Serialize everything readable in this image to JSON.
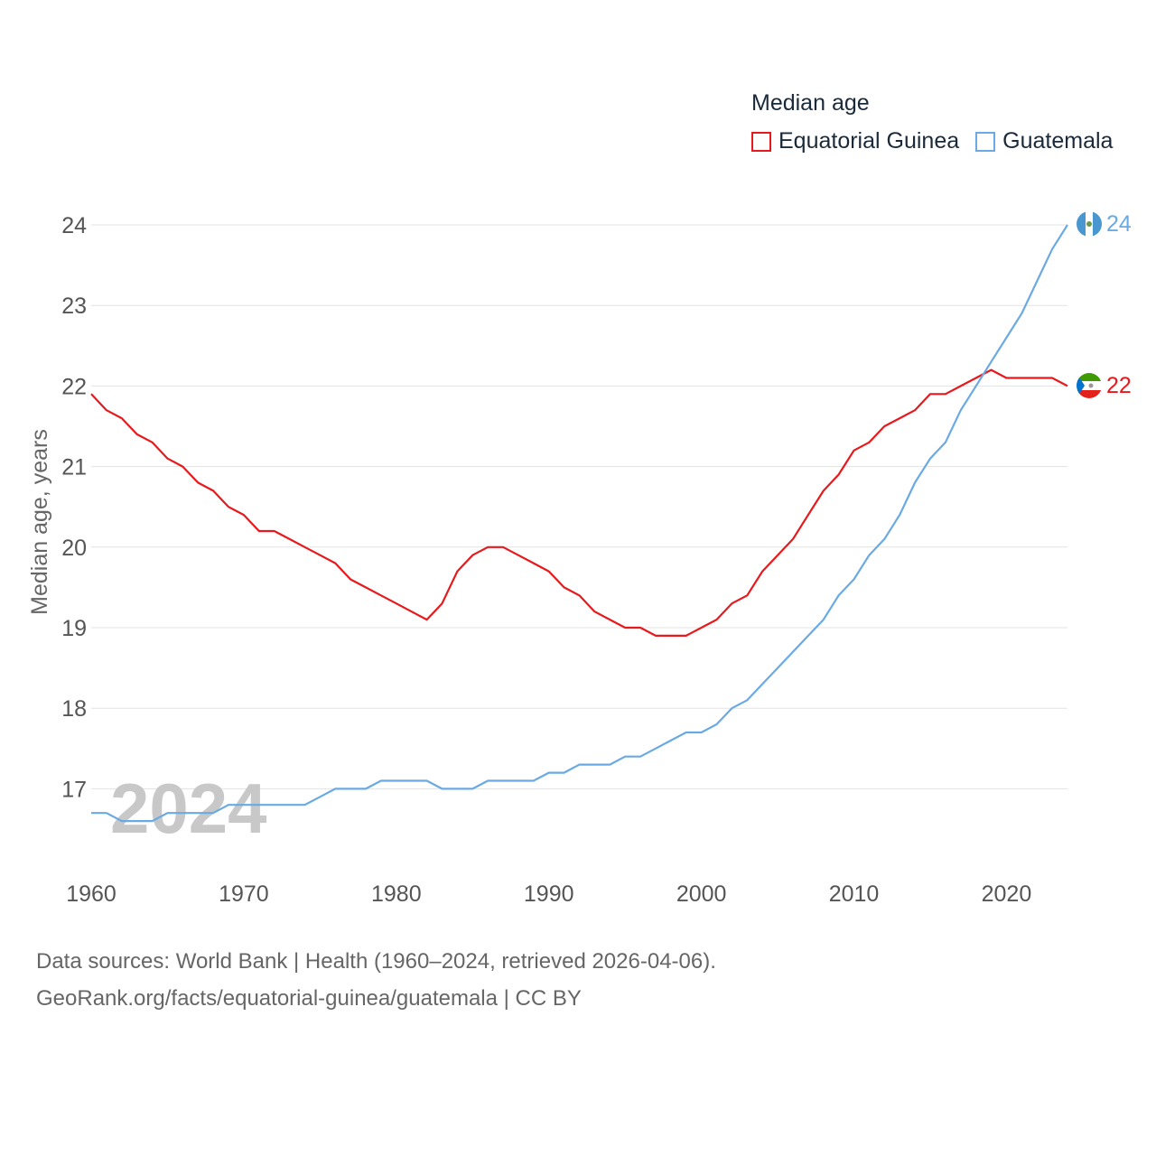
{
  "legend": {
    "title": "Median age",
    "items": [
      "Equatorial Guinea",
      "Guatemala"
    ]
  },
  "colors": {
    "equatorial_guinea": "#e8191c",
    "guatemala": "#6aaae4"
  },
  "watermark_year": "2024",
  "end_labels": {
    "equatorial_guinea": "22",
    "guatemala": "24"
  },
  "source": {
    "line1": "Data sources: World Bank | Health (1960–2024, retrieved 2026-04-06).",
    "line2": "GeoRank.org/facts/equatorial-guinea/guatemala | CC BY"
  },
  "chart_data": {
    "type": "line",
    "title": "Median age",
    "xlabel": "",
    "ylabel": "Median age, years",
    "xlim": [
      1960,
      2024
    ],
    "ylim": [
      16,
      24
    ],
    "x_ticks": [
      1960,
      1970,
      1980,
      1990,
      2000,
      2010,
      2020
    ],
    "y_ticks": [
      17,
      18,
      19,
      20,
      21,
      22,
      23,
      24
    ],
    "grid": true,
    "x": [
      1960,
      1961,
      1962,
      1963,
      1964,
      1965,
      1966,
      1967,
      1968,
      1969,
      1970,
      1971,
      1972,
      1973,
      1974,
      1975,
      1976,
      1977,
      1978,
      1979,
      1980,
      1981,
      1982,
      1983,
      1984,
      1985,
      1986,
      1987,
      1988,
      1989,
      1990,
      1991,
      1992,
      1993,
      1994,
      1995,
      1996,
      1997,
      1998,
      1999,
      2000,
      2001,
      2002,
      2003,
      2004,
      2005,
      2006,
      2007,
      2008,
      2009,
      2010,
      2011,
      2012,
      2013,
      2014,
      2015,
      2016,
      2017,
      2018,
      2019,
      2020,
      2021,
      2022,
      2023,
      2024
    ],
    "series": [
      {
        "name": "Equatorial Guinea",
        "values": [
          21.9,
          21.7,
          21.6,
          21.4,
          21.3,
          21.1,
          21.0,
          20.8,
          20.7,
          20.5,
          20.4,
          20.2,
          20.2,
          20.1,
          20.0,
          19.9,
          19.8,
          19.6,
          19.5,
          19.4,
          19.3,
          19.2,
          19.1,
          19.3,
          19.7,
          19.9,
          20.0,
          20.0,
          19.9,
          19.8,
          19.7,
          19.5,
          19.4,
          19.2,
          19.1,
          19.0,
          19.0,
          18.9,
          18.9,
          18.9,
          19.0,
          19.1,
          19.3,
          19.4,
          19.7,
          19.9,
          20.1,
          20.4,
          20.7,
          20.9,
          21.2,
          21.3,
          21.5,
          21.6,
          21.7,
          21.9,
          21.9,
          22.0,
          22.1,
          22.2,
          22.1,
          22.1,
          22.1,
          22.1,
          22.0
        ]
      },
      {
        "name": "Guatemala",
        "values": [
          16.7,
          16.7,
          16.6,
          16.6,
          16.6,
          16.7,
          16.7,
          16.7,
          16.7,
          16.8,
          16.8,
          16.8,
          16.8,
          16.8,
          16.8,
          16.9,
          17.0,
          17.0,
          17.0,
          17.1,
          17.1,
          17.1,
          17.1,
          17.0,
          17.0,
          17.0,
          17.1,
          17.1,
          17.1,
          17.1,
          17.2,
          17.2,
          17.3,
          17.3,
          17.3,
          17.4,
          17.4,
          17.5,
          17.6,
          17.7,
          17.7,
          17.8,
          18.0,
          18.1,
          18.3,
          18.5,
          18.7,
          18.9,
          19.1,
          19.4,
          19.6,
          19.9,
          20.1,
          20.4,
          20.8,
          21.1,
          21.3,
          21.7,
          22.0,
          22.3,
          22.6,
          22.9,
          23.3,
          23.7,
          24.0
        ]
      }
    ]
  }
}
